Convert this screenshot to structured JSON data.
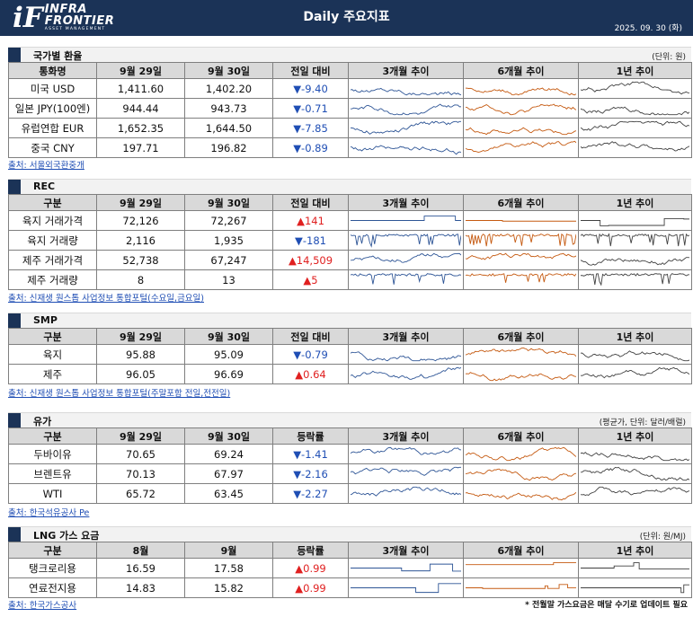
{
  "header": {
    "logo_mark": "iF",
    "logo_line1": "INFRA",
    "logo_line2": "FRONTIER",
    "logo_line3": "ASSET MANAGEMENT",
    "title": "Daily 주요지표",
    "date": "2025. 09. 30 (화)"
  },
  "colors": {
    "navy": "#1b3357",
    "down": "#1f4eb4",
    "up": "#e02020",
    "spark_3m": "#2e5596",
    "spark_6m": "#c55a11",
    "spark_1y": "#404040"
  },
  "sections": [
    {
      "title": "국가별 환율",
      "unit": "(단위: 원)",
      "columns": [
        "통화명",
        "9월 29일",
        "9월 30일",
        "전일 대비",
        "3개월 추이",
        "6개월 추이",
        "1년 추이"
      ],
      "rows": [
        {
          "name": "미국 USD",
          "prev": "1,411.60",
          "curr": "1,402.20",
          "change": "-9.40",
          "dir": "down"
        },
        {
          "name": "일본 JPY(100엔)",
          "prev": "944.44",
          "curr": "943.73",
          "change": "-0.71",
          "dir": "down"
        },
        {
          "name": "유럽연합 EUR",
          "prev": "1,652.35",
          "curr": "1,644.50",
          "change": "-7.85",
          "dir": "down"
        },
        {
          "name": "중국 CNY",
          "prev": "197.71",
          "curr": "196.82",
          "change": "-0.89",
          "dir": "down"
        }
      ],
      "source": "출처: 서울외국환중개"
    },
    {
      "title": "REC",
      "unit": "",
      "columns": [
        "구분",
        "9월 29일",
        "9월 30일",
        "전일 대비",
        "3개월 추이",
        "6개월 추이",
        "1년 추이"
      ],
      "rows": [
        {
          "name": "육지 거래가격",
          "prev": "72,126",
          "curr": "72,267",
          "change": "141",
          "dir": "up"
        },
        {
          "name": "육지 거래량",
          "prev": "2,116",
          "curr": "1,935",
          "change": "-181",
          "dir": "down"
        },
        {
          "name": "제주 거래가격",
          "prev": "52,738",
          "curr": "67,247",
          "change": "14,509",
          "dir": "up"
        },
        {
          "name": "제주 거래량",
          "prev": "8",
          "curr": "13",
          "change": "5",
          "dir": "up"
        }
      ],
      "source": "출처: 신재생 원스톱 사업정보 통합포털(수요일,금요일)"
    },
    {
      "title": "SMP",
      "unit": "",
      "columns": [
        "구분",
        "9월 29일",
        "9월 30일",
        "전일 대비",
        "3개월 추이",
        "6개월 추이",
        "1년 추이"
      ],
      "rows": [
        {
          "name": "육지",
          "prev": "95.88",
          "curr": "95.09",
          "change": "-0.79",
          "dir": "down"
        },
        {
          "name": "제주",
          "prev": "96.05",
          "curr": "96.69",
          "change": "0.64",
          "dir": "up"
        }
      ],
      "source": "출처: 신재생 원스톱 사업정보 통합포털(주말포함 전일,전전일)"
    },
    {
      "title": "유가",
      "unit": "(평균가, 단위: 달러/배럴)",
      "columns": [
        "구분",
        "9월 29일",
        "9월 30일",
        "등락률",
        "3개월 추이",
        "6개월 추이",
        "1년 추이"
      ],
      "rows": [
        {
          "name": "두바이유",
          "prev": "70.65",
          "curr": "69.24",
          "change": "-1.41",
          "dir": "down"
        },
        {
          "name": "브렌트유",
          "prev": "70.13",
          "curr": "67.97",
          "change": "-2.16",
          "dir": "down"
        },
        {
          "name": "WTI",
          "prev": "65.72",
          "curr": "63.45",
          "change": "-2.27",
          "dir": "down"
        }
      ],
      "source": "출처: 한국석유공사 Pe"
    },
    {
      "title": "LNG 가스 요금",
      "unit": "(단위: 원/MJ)",
      "columns": [
        "구분",
        "8월",
        "9월",
        "등락률",
        "3개월 추이",
        "6개월 추이",
        "1년 추이"
      ],
      "rows": [
        {
          "name": "탱크로리용",
          "prev": "16.59",
          "curr": "17.58",
          "change": "0.99",
          "dir": "up"
        },
        {
          "name": "연료전지용",
          "prev": "14.83",
          "curr": "15.82",
          "change": "0.99",
          "dir": "up"
        }
      ],
      "source": "출처: 한국가스공사",
      "footnote": "* 전월말 가스요금은 매달 수기로 업데이트 필요"
    }
  ]
}
